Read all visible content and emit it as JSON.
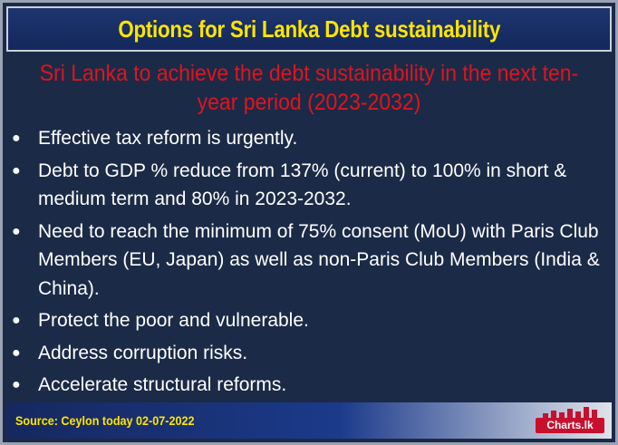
{
  "header": {
    "title": "Options for Sri Lanka Debt sustainability"
  },
  "subtitle": "Sri Lanka to achieve the debt sustainability in the next ten-year period (2023-2032)",
  "bullets": [
    "Effective tax reform is urgently.",
    "Debt to GDP % reduce from 137% (current) to 100% in short & medium term and 80% in 2023-2032.",
    "Need to reach the minimum of 75% consent (MoU) with Paris Club Members (EU, Japan) as well as non-Paris Club Members (India & China).",
    "Protect the poor and vulnerable.",
    "Address corruption risks.",
    "Accelerate structural reforms."
  ],
  "bullet_symbol": "●",
  "footer": {
    "source": "Source: Ceylon today  02-07-2022",
    "logo_text": "Charts.lk"
  },
  "colors": {
    "background": "#1b2a47",
    "title": "#ffe500",
    "subtitle": "#e0141c",
    "body_text": "#ffffff",
    "logo": "#c8102e"
  }
}
